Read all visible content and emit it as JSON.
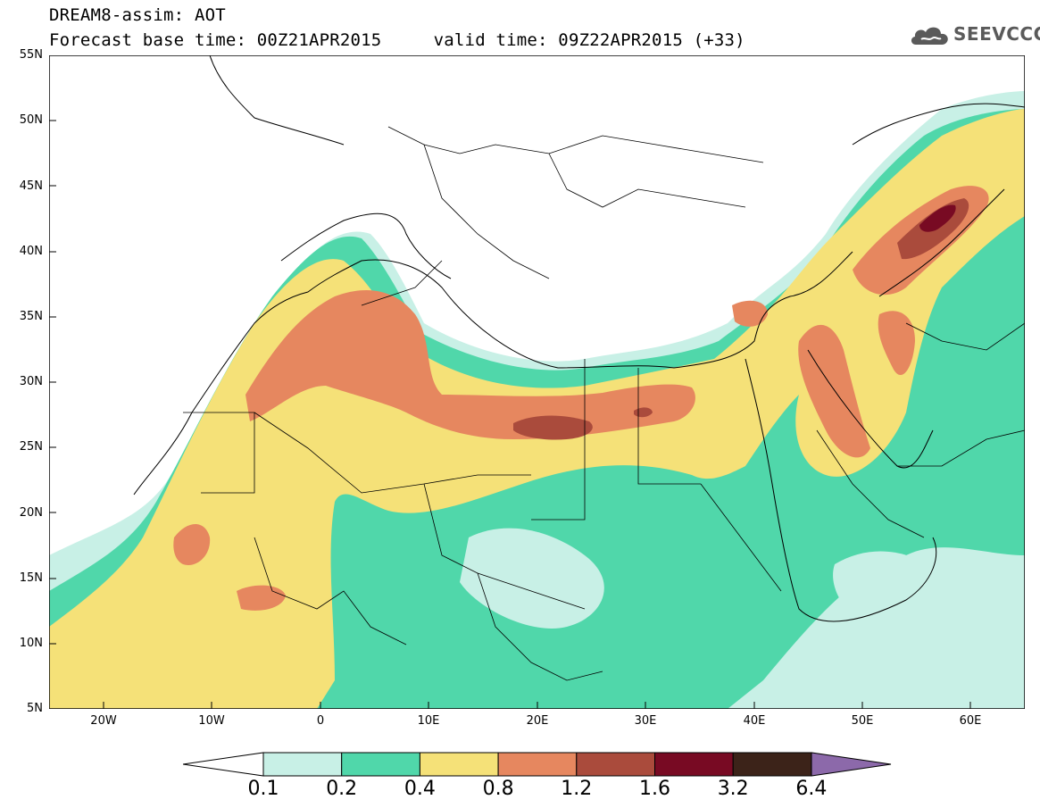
{
  "header": {
    "title_line1": "DREAM8-assim: AOT",
    "title_line2": "Forecast base time: 00Z21APR2015     valid time: 09Z22APR2015 (+33)"
  },
  "logo": {
    "text": "SEEVCCC",
    "icon": "cloud-icon"
  },
  "map": {
    "variable": "AOT",
    "model": "DREAM8-assim",
    "base_time": "00Z21APR2015",
    "valid_time": "09Z22APR2015",
    "forecast_hour": "+33",
    "extent": {
      "lon_min": -25,
      "lon_max": 65,
      "lat_min": 5,
      "lat_max": 55
    },
    "lat_ticks": [
      "55N",
      "50N",
      "45N",
      "40N",
      "35N",
      "30N",
      "25N",
      "20N",
      "15N",
      "10N",
      "5N"
    ],
    "lon_ticks": [
      "20W",
      "10W",
      "0",
      "10E",
      "20E",
      "30E",
      "40E",
      "50E",
      "60E"
    ],
    "background_color": "#ffffff",
    "border_color": "#000000"
  },
  "colorbar": {
    "labels": [
      "0.1",
      "0.2",
      "0.4",
      "0.8",
      "1.2",
      "1.6",
      "3.2",
      "6.4"
    ],
    "colors": [
      "#c8f0e6",
      "#50d7aa",
      "#f5e178",
      "#e6875f",
      "#aa4b3c",
      "#780a23",
      "#3c2319",
      "#8c69aa"
    ],
    "under_color": "#ffffff"
  }
}
